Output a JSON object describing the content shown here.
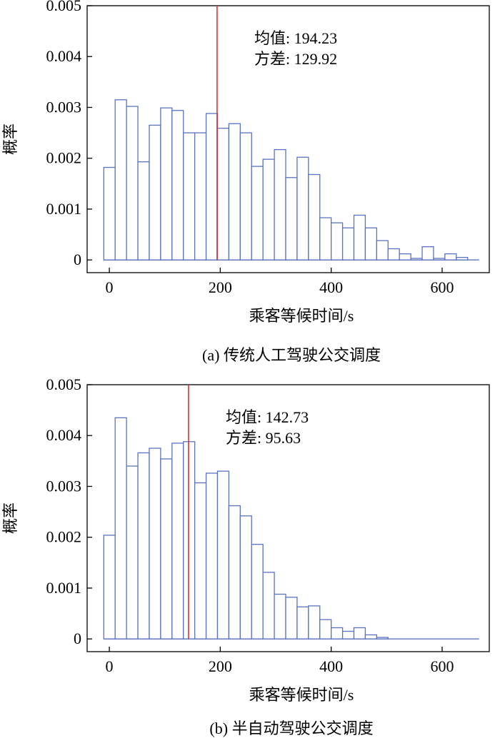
{
  "colors": {
    "bar_edge": "#5b73bd",
    "mean_line": "#e03030",
    "frame": "#000000"
  },
  "chart_data": [
    {
      "type": "bar",
      "subtype": "histogram",
      "caption": "(a) 传统人工驾驶公交调度",
      "xlabel": "乘客等候时间/s",
      "ylabel": "概率",
      "xlim": [
        -40,
        685
      ],
      "ylim": [
        -0.00025,
        0.005
      ],
      "xticks": [
        0,
        200,
        400,
        600
      ],
      "xtick_labels": [
        "0",
        "200",
        "400",
        "600"
      ],
      "yticks": [
        0,
        0.001,
        0.002,
        0.003,
        0.004,
        0.005
      ],
      "ytick_labels": [
        "0",
        "0.001",
        "0.002",
        "0.003",
        "0.004",
        "0.005"
      ],
      "bin_start": -10,
      "bin_width": 20.5,
      "values": [
        0.00182,
        0.00315,
        0.00302,
        0.00193,
        0.00265,
        0.00299,
        0.00294,
        0.0025,
        0.0025,
        0.00288,
        0.00259,
        0.00268,
        0.0025,
        0.00184,
        0.00198,
        0.00217,
        0.00162,
        0.00202,
        0.00168,
        0.00083,
        0.00073,
        0.00063,
        0.00088,
        0.00063,
        0.00038,
        0.00022,
        0.00012,
        3e-05,
        0.00026,
        3e-05,
        0.00012,
        5e-05,
        0.0
      ],
      "mean": 194.23,
      "mean_label": "均值: 194.23",
      "variance_label": "方差: 129.92",
      "grid": false
    },
    {
      "type": "bar",
      "subtype": "histogram",
      "caption": "(b) 半自动驾驶公交调度",
      "xlabel": "乘客等候时间/s",
      "ylabel": "概率",
      "xlim": [
        -40,
        685
      ],
      "ylim": [
        -0.00025,
        0.005
      ],
      "xticks": [
        0,
        200,
        400,
        600
      ],
      "xtick_labels": [
        "0",
        "200",
        "400",
        "600"
      ],
      "yticks": [
        0,
        0.001,
        0.002,
        0.003,
        0.004,
        0.005
      ],
      "ytick_labels": [
        "0",
        "0.001",
        "0.002",
        "0.003",
        "0.004",
        "0.005"
      ],
      "bin_start": -10,
      "bin_width": 20.5,
      "values": [
        0.00204,
        0.00435,
        0.0034,
        0.00366,
        0.00375,
        0.00354,
        0.00385,
        0.00388,
        0.00307,
        0.00326,
        0.0033,
        0.00262,
        0.00242,
        0.00186,
        0.00131,
        0.00088,
        0.00082,
        0.00063,
        0.00065,
        0.00038,
        0.00022,
        0.00015,
        0.00022,
        8e-05,
        3e-05,
        0.0,
        0.0,
        0.0,
        0.0,
        0.0,
        0.0,
        0.0,
        0.0
      ],
      "mean": 142.73,
      "mean_label": "均值: 142.73",
      "variance_label": "方差: 95.63",
      "grid": false
    }
  ]
}
